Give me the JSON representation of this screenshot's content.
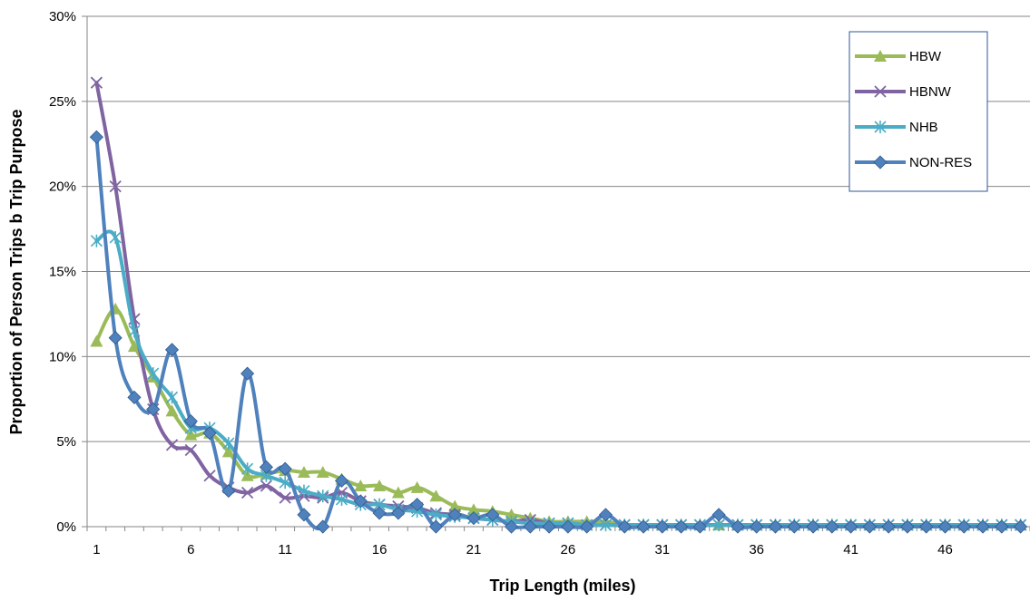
{
  "chart_data": {
    "type": "line",
    "title": "",
    "xlabel": "Trip Length (miles)",
    "ylabel": "Proportion of Person Trips b Trip Purpose",
    "xlim": [
      0.5,
      50.5
    ],
    "ylim": [
      0,
      0.3
    ],
    "x_ticks": [
      1,
      6,
      11,
      16,
      21,
      26,
      31,
      36,
      41,
      46
    ],
    "x_tick_labels": [
      "1",
      "6",
      "11",
      "16",
      "21",
      "26",
      "31",
      "36",
      "41",
      "46"
    ],
    "y_ticks": [
      0,
      0.05,
      0.1,
      0.15,
      0.2,
      0.25,
      0.3
    ],
    "y_tick_labels": [
      "0%",
      "5%",
      "10%",
      "15%",
      "20%",
      "25%",
      "30%"
    ],
    "grid": "horizontal",
    "legend_position": "top-right",
    "x": [
      1,
      2,
      3,
      4,
      5,
      6,
      7,
      8,
      9,
      10,
      11,
      12,
      13,
      14,
      15,
      16,
      17,
      18,
      19,
      20,
      21,
      22,
      23,
      24,
      25,
      26,
      27,
      28,
      29,
      30,
      31,
      32,
      33,
      34,
      35,
      36,
      37,
      38,
      39,
      40,
      41,
      42,
      43,
      44,
      45,
      46,
      47,
      48,
      49,
      50
    ],
    "series": [
      {
        "name": "HBW",
        "color": "#9BBB59",
        "marker": "triangle",
        "values": [
          0.109,
          0.128,
          0.106,
          0.088,
          0.068,
          0.054,
          0.055,
          0.044,
          0.03,
          0.031,
          0.033,
          0.032,
          0.032,
          0.028,
          0.024,
          0.024,
          0.02,
          0.023,
          0.018,
          0.012,
          0.01,
          0.009,
          0.007,
          0.005,
          0.003,
          0.003,
          0.003,
          0.003,
          0.001,
          0.001,
          0.001,
          0.001,
          0.001,
          0.001,
          0.001,
          0.001,
          0.001,
          0.001,
          0.001,
          0.001,
          0.001,
          0.001,
          0.001,
          0.001,
          0.001,
          0.001,
          0.001,
          0.001,
          0.001,
          0.001
        ]
      },
      {
        "name": "HBNW",
        "color": "#8064A2",
        "marker": "x",
        "values": [
          0.261,
          0.2,
          0.122,
          0.069,
          0.048,
          0.045,
          0.03,
          0.023,
          0.02,
          0.024,
          0.017,
          0.018,
          0.017,
          0.02,
          0.015,
          0.013,
          0.012,
          0.011,
          0.008,
          0.007,
          0.005,
          0.004,
          0.003,
          0.004,
          0.002,
          0.002,
          0.001,
          0.001,
          0.001,
          0.001,
          0.001,
          0.001,
          0.001,
          0.001,
          0.001,
          0.001,
          0.001,
          0.001,
          0.001,
          0.001,
          0.001,
          0.001,
          0.001,
          0.001,
          0.001,
          0.001,
          0.001,
          0.001,
          0.001,
          0.001
        ]
      },
      {
        "name": "NHB",
        "color": "#4BACC6",
        "marker": "star",
        "values": [
          0.168,
          0.17,
          0.115,
          0.09,
          0.076,
          0.058,
          0.058,
          0.049,
          0.034,
          0.03,
          0.026,
          0.021,
          0.018,
          0.016,
          0.013,
          0.013,
          0.01,
          0.009,
          0.007,
          0.006,
          0.005,
          0.004,
          0.003,
          0.002,
          0.002,
          0.002,
          0.001,
          0.001,
          0.001,
          0.001,
          0.001,
          0.001,
          0.001,
          0.001,
          0.001,
          0.001,
          0.001,
          0.001,
          0.001,
          0.001,
          0.001,
          0.001,
          0.001,
          0.001,
          0.001,
          0.001,
          0.001,
          0.001,
          0.001,
          0.001
        ]
      },
      {
        "name": "NON-RES",
        "color": "#4F81BD",
        "marker": "diamond",
        "values": [
          0.229,
          0.111,
          0.076,
          0.069,
          0.104,
          0.062,
          0.055,
          0.021,
          0.09,
          0.035,
          0.034,
          0.007,
          0.0,
          0.027,
          0.015,
          0.008,
          0.008,
          0.013,
          0.0,
          0.007,
          0.005,
          0.007,
          0.0,
          0.0,
          0.0,
          0.0,
          0.0,
          0.007,
          0.0,
          0.0,
          0.0,
          0.0,
          0.0,
          0.007,
          0.0,
          0.0,
          0.0,
          0.0,
          0.0,
          0.0,
          0.0,
          0.0,
          0.0,
          0.0,
          0.0,
          0.0,
          0.0,
          0.0,
          0.0,
          0.0
        ]
      }
    ]
  }
}
